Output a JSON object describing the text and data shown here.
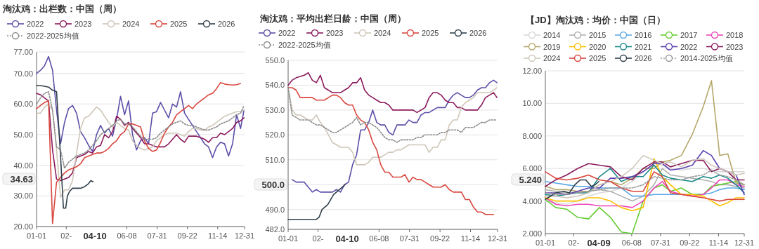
{
  "chart_data": [
    {
      "type": "line",
      "title": "淘汰鸡：出栏数：中国（周）",
      "grid": "y",
      "legend": "top",
      "xlim": [
        "--01-01",
        "--12-31"
      ],
      "xticks": [
        {
          "value": "--01-01",
          "label": "01-01"
        },
        {
          "value": "--02-22",
          "label": "02-"
        },
        {
          "value": "--06-08",
          "label": "06-08"
        },
        {
          "value": "--07-31",
          "label": "07-31"
        },
        {
          "value": "--09-22",
          "label": "09-22"
        },
        {
          "value": "--11-14",
          "label": "11-14"
        },
        {
          "value": "--12-31",
          "label": "12-31"
        }
      ],
      "ylim": [
        20,
        77
      ],
      "yticks": [
        {
          "value": 20,
          "label": "20.00"
        },
        {
          "value": 30,
          "label": "30.00"
        },
        {
          "value": 40,
          "label": "40.00"
        },
        {
          "value": 50,
          "label": "50.00"
        },
        {
          "value": 60,
          "label": "60.00"
        },
        {
          "value": 70,
          "label": "70.00"
        },
        {
          "value": 77,
          "label": "77.00"
        }
      ],
      "x": [
        "--01-01",
        "--01-08",
        "--01-15",
        "--01-22",
        "--01-29",
        "--02-05",
        "--02-12",
        "--02-19",
        "--02-26",
        "--03-05",
        "--03-12",
        "--03-19",
        "--03-26",
        "--04-02",
        "--04-09",
        "--04-16",
        "--04-23",
        "--04-30",
        "--05-07",
        "--05-14",
        "--05-21",
        "--05-28",
        "--06-04",
        "--06-11",
        "--06-18",
        "--06-25",
        "--07-02",
        "--07-09",
        "--07-16",
        "--07-23",
        "--07-30",
        "--08-06",
        "--08-13",
        "--08-20",
        "--08-27",
        "--09-03",
        "--09-10",
        "--09-17",
        "--09-24",
        "--10-01",
        "--10-08",
        "--10-15",
        "--10-22",
        "--10-29",
        "--11-05",
        "--11-12",
        "--11-19",
        "--11-26",
        "--12-03",
        "--12-10",
        "--12-17",
        "--12-24",
        "--12-30"
      ],
      "annotations": [
        "34.63",
        "04-10"
      ],
      "series": [
        {
          "name": "2022",
          "color": "#5b4fa8",
          "values": [
            70,
            71,
            72.5,
            75.5,
            71,
            58,
            47,
            54,
            58.5,
            59.5,
            57,
            51,
            49,
            46.5,
            44.5,
            50,
            53,
            50.5,
            52,
            49.5,
            55,
            62.5,
            56.5,
            61,
            50,
            45,
            48,
            49,
            47,
            57,
            57.5,
            60.5,
            58,
            55.5,
            60,
            59,
            64,
            57,
            55,
            53,
            51,
            49,
            47,
            46,
            42.5,
            46,
            47.5,
            47,
            43,
            47,
            56.5,
            52,
            58
          ]
        },
        {
          "name": "2023",
          "color": "#8b1a5c",
          "values": [
            63.5,
            63,
            62,
            61,
            45,
            35.5,
            35,
            35.5,
            36,
            37.5,
            42.5,
            43,
            43.5,
            44.5,
            44,
            46,
            46.5,
            50,
            49,
            51,
            56,
            55,
            53,
            54,
            52,
            50.5,
            49,
            47,
            47,
            46.5,
            46,
            46,
            46,
            47,
            48.5,
            50,
            48.5,
            47.5,
            49.5,
            49.5,
            49.5,
            49,
            48.5,
            47.5,
            49,
            49,
            50.5,
            50,
            51,
            52,
            54,
            54.5,
            55.5
          ]
        },
        {
          "name": "2024",
          "color": "#cfc6b8",
          "values": [
            57,
            57,
            59,
            60,
            58,
            45,
            29.5,
            32,
            32,
            35,
            44,
            52,
            55.5,
            56,
            57.5,
            59,
            58,
            56,
            54,
            52.5,
            54,
            53,
            52,
            51.5,
            48,
            46.5,
            45.5,
            45,
            45.5,
            46,
            48,
            49,
            50,
            50.5,
            50.5,
            50.5,
            50,
            49.5,
            51,
            52,
            52,
            51.5,
            51.5,
            52.5,
            53,
            54,
            55,
            56,
            56.5,
            57,
            57.5,
            57.5,
            58
          ]
        },
        {
          "name": "2025",
          "color": "#d9473e",
          "values": [
            58.5,
            59.5,
            60.5,
            61,
            21,
            34.5,
            36,
            37.5,
            38.5,
            39,
            39.5,
            40.5,
            42.5,
            43,
            43.5,
            44,
            44,
            44.5,
            45.5,
            47,
            48,
            50,
            51,
            53.5,
            53.5,
            53,
            52.5,
            48,
            45.5,
            44.5,
            45,
            47.5,
            50.5,
            52.5,
            54,
            56.5,
            57.5,
            58.5,
            59.5,
            58.5,
            60,
            61,
            62,
            63,
            63.5,
            65,
            67,
            66.5,
            66.3,
            66.2,
            66.3,
            66.7,
            null
          ]
        },
        {
          "name": "2026",
          "color": "#2f3f4a",
          "x": [
            "--01-01",
            "--01-08",
            "--01-15",
            "--01-22",
            "--01-29",
            "--02-05",
            "--02-12",
            "--02-17",
            "--02-21",
            "--02-24",
            "--02-28",
            "--03-05",
            "--03-12",
            "--03-19",
            "--03-26",
            "--04-02",
            "--04-06",
            "--04-10"
          ],
          "values": [
            66,
            66,
            65.8,
            65.5,
            64.5,
            64,
            43,
            26,
            26,
            30,
            31.5,
            32.5,
            32.5,
            32.5,
            33,
            34,
            35,
            34.6
          ]
        },
        {
          "name": "2022-2025均值",
          "color": "#8a8a8a",
          "line_style": "dotted",
          "values": [
            60,
            62,
            63.5,
            64,
            58,
            46,
            45,
            39,
            41,
            42,
            43,
            43.5,
            44,
            45,
            46.5,
            48,
            50,
            51,
            52,
            53,
            54.5,
            55,
            53.5,
            53.5,
            52.5,
            51,
            49.5,
            48.5,
            48.5,
            48.5,
            49,
            50.5,
            51.5,
            52.5,
            53.5,
            54,
            54.5,
            53.5,
            53,
            53,
            52.5,
            52,
            51.5,
            51.5,
            52,
            52.5,
            53.5,
            54,
            54.5,
            55.5,
            56.5,
            57,
            59.5
          ]
        }
      ]
    },
    {
      "type": "line",
      "title": "淘汰鸡：平均出栏日龄：中国（周）",
      "grid": "y",
      "legend": "top",
      "xlim": [
        "--01-01",
        "--12-31"
      ],
      "xticks": [
        {
          "value": "--01-01",
          "label": "01-01"
        },
        {
          "value": "--02-22",
          "label": "02-"
        },
        {
          "value": "--06-08",
          "label": "06-08"
        },
        {
          "value": "--07-31",
          "label": "07-31"
        },
        {
          "value": "--09-22",
          "label": "09-22"
        },
        {
          "value": "--11-14",
          "label": "11-14"
        },
        {
          "value": "--12-31",
          "label": "12-31"
        }
      ],
      "ylim": [
        482,
        550
      ],
      "yticks": [
        {
          "value": 482,
          "label": "482.0"
        },
        {
          "value": 490,
          "label": "490.0"
        },
        {
          "value": 500,
          "label": null
        },
        {
          "value": 510,
          "label": "510.0"
        },
        {
          "value": 520,
          "label": "520.0"
        },
        {
          "value": 530,
          "label": "530.0"
        },
        {
          "value": 540,
          "label": "540.0"
        },
        {
          "value": 550,
          "label": "550.0"
        }
      ],
      "x": [
        "--01-01",
        "--01-08",
        "--01-15",
        "--01-22",
        "--01-29",
        "--02-05",
        "--02-12",
        "--02-19",
        "--02-26",
        "--03-05",
        "--03-12",
        "--03-19",
        "--03-26",
        "--04-02",
        "--04-09",
        "--04-16",
        "--04-23",
        "--04-30",
        "--05-07",
        "--05-14",
        "--05-21",
        "--05-28",
        "--06-04",
        "--06-11",
        "--06-18",
        "--06-25",
        "--07-02",
        "--07-09",
        "--07-16",
        "--07-23",
        "--07-30",
        "--08-06",
        "--08-13",
        "--08-20",
        "--08-27",
        "--09-03",
        "--09-10",
        "--09-17",
        "--09-24",
        "--10-01",
        "--10-08",
        "--10-15",
        "--10-22",
        "--10-29",
        "--11-05",
        "--11-12",
        "--11-19",
        "--11-26",
        "--12-03",
        "--12-10",
        "--12-17",
        "--12-24",
        "--12-30"
      ],
      "annotations": [
        "500.0",
        "04-10"
      ],
      "series": [
        {
          "name": "2022",
          "color": "#5b4fa8",
          "values": [
            null,
            502,
            501,
            501,
            501,
            499,
            497,
            498,
            497,
            497,
            497,
            497,
            498,
            497,
            500,
            501,
            508,
            512,
            522,
            522,
            525,
            530,
            525,
            524,
            524,
            521,
            520,
            524,
            524,
            524,
            526,
            525,
            525,
            528,
            529,
            529,
            530,
            531,
            531,
            531,
            534,
            536,
            537,
            536,
            535,
            535,
            536,
            538,
            539,
            539,
            541,
            542,
            541
          ]
        },
        {
          "name": "2023",
          "color": "#8b1a5c",
          "values": [
            540,
            542,
            543,
            543.5,
            544,
            545,
            542,
            541,
            544,
            539,
            538,
            537,
            537,
            537,
            538,
            539,
            541,
            541,
            543,
            538,
            536,
            535,
            534,
            533,
            533,
            532,
            530,
            530,
            530,
            530,
            530,
            530,
            529,
            530,
            531,
            535,
            537,
            537,
            536,
            534,
            533,
            533,
            531,
            531,
            530,
            530,
            530,
            530,
            532,
            535,
            536,
            537,
            535
          ]
        },
        {
          "name": "2024",
          "color": "#cfc6b8",
          "values": [
            539,
            530,
            528,
            528,
            527,
            526,
            526,
            528,
            525,
            523,
            520,
            517,
            516,
            515,
            515,
            515,
            513,
            508,
            508,
            508,
            509,
            511,
            511,
            511,
            512,
            513,
            513,
            514,
            514,
            515,
            516,
            516,
            516,
            516,
            516,
            513,
            515,
            515,
            518,
            518,
            524,
            526,
            526,
            531,
            533,
            534,
            535,
            537,
            537,
            537,
            537,
            538,
            539
          ]
        },
        {
          "name": "2025",
          "color": "#d9473e",
          "values": [
            539,
            539,
            538,
            535,
            535,
            535,
            535,
            534,
            534,
            534,
            535,
            536,
            536,
            535,
            533,
            532,
            532,
            528,
            526,
            525,
            522,
            517,
            514,
            508,
            505,
            505,
            503,
            503,
            503,
            504,
            501,
            503,
            502,
            502,
            501,
            500,
            499,
            499,
            499,
            500,
            498,
            497,
            497,
            497,
            494,
            494,
            491,
            489,
            489,
            488,
            488,
            488,
            null
          ]
        },
        {
          "name": "2026",
          "color": "#2f3f4a",
          "x": [
            "--01-01",
            "--01-08",
            "--01-15",
            "--01-22",
            "--01-29",
            "--02-05",
            "--02-12",
            "--02-19",
            "--02-24",
            "--03-01",
            "--03-06",
            "--03-11",
            "--03-16",
            "--03-21",
            "--03-26",
            "--03-31",
            "--04-05",
            "--04-10"
          ],
          "values": [
            486,
            486,
            486,
            486,
            486,
            486,
            486,
            486,
            487,
            490,
            491,
            492,
            494,
            496,
            497,
            498,
            499,
            500
          ]
        },
        {
          "name": "2022-2025均值",
          "color": "#8a8a8a",
          "line_style": "dotted",
          "values": [
            539,
            528,
            527,
            526,
            526,
            526,
            525,
            524,
            524,
            523,
            522,
            521,
            521,
            522,
            523,
            524,
            525,
            527,
            524,
            525,
            525,
            524,
            523,
            521,
            519,
            518,
            518,
            517,
            518,
            518,
            518,
            518,
            519,
            519,
            520,
            520,
            520,
            520,
            521,
            521,
            522,
            522,
            522,
            521,
            523,
            523,
            523,
            524,
            525,
            525,
            526,
            526,
            526
          ]
        }
      ]
    },
    {
      "type": "line",
      "title": "【JD】淘汰鸡：均价：中国（日）",
      "grid": "y",
      "legend": "top",
      "xlim": [
        "--01-01",
        "--12-31"
      ],
      "xticks": [
        {
          "value": "--01-01",
          "label": "01-01"
        },
        {
          "value": "--02-22",
          "label": "02-"
        },
        {
          "value": "--06-08",
          "label": "06-08"
        },
        {
          "value": "--07-31",
          "label": "07-31"
        },
        {
          "value": "--09-22",
          "label": "09-22"
        },
        {
          "value": "--11-14",
          "label": "11-14"
        },
        {
          "value": "--12-31",
          "label": "12-31"
        }
      ],
      "ylim": [
        2,
        12
      ],
      "yticks": [
        {
          "value": 2,
          "label": "2.000"
        },
        {
          "value": 4,
          "label": "4.000"
        },
        {
          "value": 6,
          "label": "6.000"
        },
        {
          "value": 8,
          "label": "8.000"
        },
        {
          "value": 10,
          "label": "10.00"
        },
        {
          "value": 12,
          "label": "12.00"
        }
      ],
      "x": [
        "--01-01",
        "--01-20",
        "--02-09",
        "--03-01",
        "--03-21",
        "--04-10",
        "--04-30",
        "--05-20",
        "--06-09",
        "--06-29",
        "--07-19",
        "--08-03",
        "--08-18",
        "--09-07",
        "--09-27",
        "--10-17",
        "--11-01",
        "--11-16",
        "--12-01",
        "--12-16",
        "--12-31"
      ],
      "annotations": [
        "5.240",
        "04-09"
      ],
      "series": [
        {
          "name": "2014",
          "color": "#d9d9d9",
          "values": [
            4.0,
            3.9,
            3.8,
            4.0,
            4.3,
            4.5,
            4.6,
            4.8,
            5.2,
            5.8,
            6.3,
            6.2,
            6.0,
            5.9,
            6.0,
            6.0,
            5.9,
            5.8,
            5.8,
            5.8,
            5.8
          ]
        },
        {
          "name": "2015",
          "color": "#b0b0b0",
          "values": [
            4.7,
            4.6,
            4.5,
            4.5,
            4.6,
            4.7,
            4.6,
            4.3,
            4.0,
            4.3,
            5.0,
            6.0,
            5.6,
            5.5,
            5.4,
            5.3,
            5.2,
            5.0,
            5.0,
            4.9,
            4.8
          ]
        },
        {
          "name": "2016",
          "color": "#5aa9e6",
          "values": [
            5.2,
            5.1,
            5.0,
            4.9,
            4.9,
            4.8,
            4.8,
            4.8,
            4.3,
            4.3,
            4.4,
            4.4,
            4.4,
            4.4,
            4.4,
            4.4,
            4.5,
            4.7,
            4.8,
            4.8,
            4.7
          ]
        },
        {
          "name": "2017",
          "color": "#66cc33",
          "values": [
            4.1,
            3.6,
            3.5,
            3.0,
            2.9,
            3.6,
            3.0,
            2.1,
            2.0,
            4.0,
            4.8,
            5.0,
            4.6,
            4.8,
            4.4,
            4.4,
            4.9,
            5.0,
            5.1,
            5.2,
            5.0
          ]
        },
        {
          "name": "2018",
          "color": "#ee44bb",
          "values": [
            4.2,
            3.8,
            3.7,
            3.8,
            3.8,
            3.7,
            3.7,
            3.7,
            3.6,
            4.0,
            4.8,
            5.2,
            4.6,
            4.4,
            4.3,
            4.4,
            4.8,
            5.3,
            5.3,
            5.0,
            4.9
          ]
        },
        {
          "name": "2019",
          "color": "#b5a86a",
          "values": [
            4.9,
            4.7,
            4.7,
            4.6,
            4.6,
            5.0,
            5.2,
            5.0,
            5.4,
            6.0,
            6.0,
            6.4,
            6.5,
            6.8,
            8.1,
            9.8,
            11.4,
            6.8,
            6.9,
            5.1,
            5.0
          ]
        },
        {
          "name": "2020",
          "color": "#ffc000",
          "values": [
            4.2,
            4.0,
            4.0,
            4.0,
            4.2,
            4.2,
            4.0,
            3.6,
            3.4,
            3.6,
            6.6,
            5.5,
            5.0,
            4.4,
            4.4,
            4.3,
            4.0,
            3.7,
            3.9,
            4.2,
            4.2
          ]
        },
        {
          "name": "2021",
          "color": "#1a8a8a",
          "values": [
            4.4,
            4.3,
            4.4,
            4.5,
            4.5,
            5.5,
            6.0,
            5.2,
            5.5,
            5.5,
            6.2,
            5.6,
            5.4,
            5.3,
            5.2,
            5.5,
            5.4,
            5.6,
            5.4,
            5.0,
            4.5
          ]
        },
        {
          "name": "2022",
          "color": "#5b3fb0",
          "values": [
            4.5,
            4.5,
            4.4,
            4.6,
            4.8,
            4.8,
            5.4,
            5.4,
            5.5,
            5.8,
            6.3,
            6.3,
            5.9,
            6.0,
            6.2,
            7.1,
            6.8,
            6.0,
            5.8,
            5.6,
            4.4
          ]
        },
        {
          "name": "2023",
          "color": "#8b1a5c",
          "values": [
            4.9,
            5.3,
            5.6,
            6.0,
            6.3,
            6.2,
            6.1,
            5.5,
            5.3,
            6.0,
            6.4,
            6.4,
            6.1,
            6.3,
            6.5,
            6.5,
            5.8,
            6.0,
            5.8,
            5.3,
            5.3
          ]
        },
        {
          "name": "2024",
          "color": "#d0c8bc",
          "values": [
            4.3,
            4.3,
            4.2,
            4.3,
            4.5,
            5.0,
            5.2,
            5.5,
            6.0,
            6.8,
            6.5,
            6.3,
            6.4,
            6.1,
            6.5,
            6.6,
            6.2,
            6.0,
            5.8,
            5.6,
            5.7
          ]
        },
        {
          "name": "2025",
          "color": "#d9473e",
          "values": [
            5.8,
            5.4,
            5.3,
            5.4,
            5.6,
            5.3,
            5.2,
            4.8,
            4.6,
            4.6,
            5.8,
            5.5,
            4.5,
            4.4,
            4.3,
            4.2,
            4.1,
            4.0,
            4.1,
            4.1,
            4.1
          ]
        },
        {
          "name": "2026",
          "color": "#2f3f4a",
          "x": [
            "--01-01",
            "--01-20",
            "--02-04",
            "--02-14",
            "--02-24",
            "--03-06",
            "--03-16",
            "--03-26",
            "--04-02",
            "--04-09"
          ],
          "values": [
            4.1,
            4.5,
            4.6,
            4.5,
            5.0,
            5.3,
            5.3,
            4.9,
            5.0,
            5.2
          ]
        },
        {
          "name": "2014-2025均值",
          "color": "#999999",
          "line_style": "dotted",
          "values": [
            4.5,
            4.4,
            4.4,
            4.5,
            4.6,
            4.7,
            4.8,
            4.8,
            4.8,
            5.0,
            5.5,
            5.4,
            5.3,
            5.3,
            5.5,
            5.6,
            5.9,
            5.6,
            5.5,
            5.3,
            5.0
          ]
        }
      ]
    }
  ]
}
